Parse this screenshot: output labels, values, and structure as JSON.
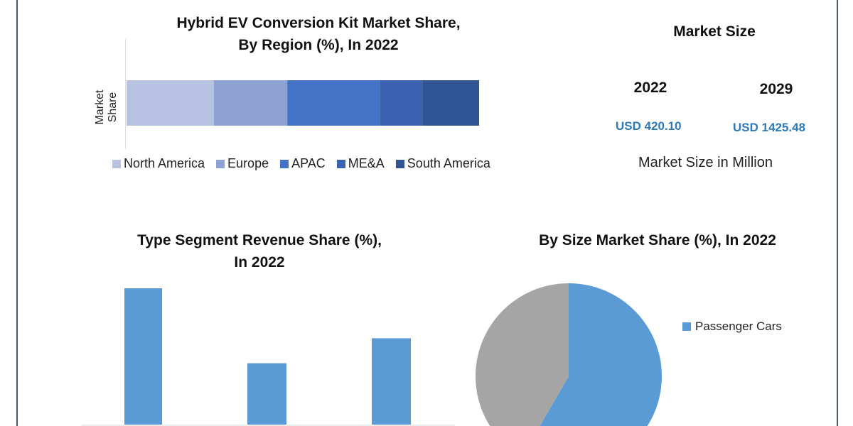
{
  "region_chart_title": [
    "Hybrid EV Conversion Kit Market Share,",
    "By Region (%), In 2022"
  ],
  "market_size": {
    "title": "Market Size",
    "year1": "2022",
    "value1": "USD 420.10",
    "year2": "2029",
    "value2": "USD 1425.48",
    "unit_note": "Market Size in Million"
  },
  "type_chart_title": [
    "Type Segment Revenue Share (%),",
    "In 2022"
  ],
  "size_chart_title": "By Size Market Share (%), In 2022",
  "chart_data": [
    {
      "type": "bar",
      "orientation": "horizontal-stacked",
      "ylabel": "Market Share",
      "categories": [
        "Market Share"
      ],
      "series": [
        {
          "name": "North America",
          "values": [
            24.8
          ],
          "color": "#b8c2e2"
        },
        {
          "name": "Europe",
          "values": [
            20.8
          ],
          "color": "#8fa2d4"
        },
        {
          "name": "APAC",
          "values": [
            26.2
          ],
          "color": "#4472c4"
        },
        {
          "name": "ME&A",
          "values": [
            12.1
          ],
          "color": "#3a62b0"
        },
        {
          "name": "South America",
          "values": [
            16.1
          ],
          "color": "#2f5597"
        }
      ],
      "xlim": [
        0,
        100
      ],
      "legend": "bottom"
    },
    {
      "type": "bar",
      "values": [
        48.0,
        21.6,
        30.4
      ],
      "color": "#5b9bd5",
      "ylim": [
        0,
        55
      ]
    },
    {
      "type": "pie",
      "slices": [
        {
          "name": "Passenger Cars",
          "value": 55,
          "color": "#5b9bd5"
        },
        {
          "value": 45,
          "color": "#a5a5a5"
        }
      ],
      "legend": "right"
    }
  ]
}
